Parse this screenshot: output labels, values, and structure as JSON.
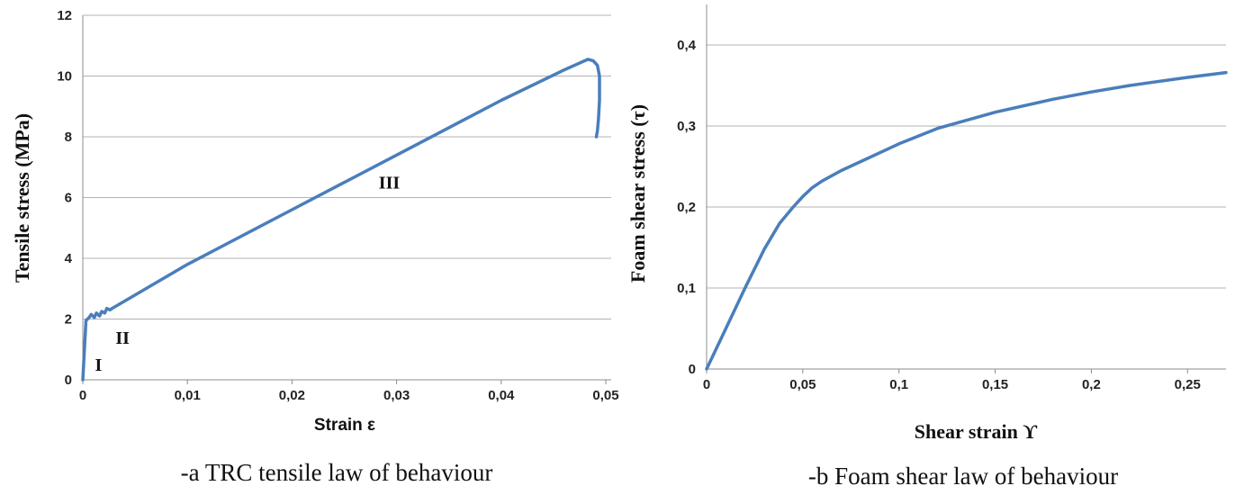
{
  "chart_data": [
    {
      "type": "line",
      "caption": "-a TRC tensile law of behaviour",
      "xlabel": "Strain ε",
      "ylabel": "Tensile stress (MPa)",
      "xlim": [
        0,
        0.05
      ],
      "ylim": [
        0,
        12
      ],
      "x_ticks": [
        0,
        0.01,
        0.02,
        0.03,
        0.04,
        0.05
      ],
      "x_tick_labels": [
        "0",
        "0,01",
        "0,02",
        "0,03",
        "0,04",
        "0,05"
      ],
      "y_ticks": [
        0,
        2,
        4,
        6,
        8,
        10,
        12
      ],
      "y_tick_labels": [
        "0",
        "2",
        "4",
        "6",
        "8",
        "10",
        "12"
      ],
      "grid": "horizontal",
      "annotations": [
        {
          "text": "I",
          "x": 0.0015,
          "y": 0.5
        },
        {
          "text": "II",
          "x": 0.0038,
          "y": 1.4
        },
        {
          "text": "III",
          "x": 0.0293,
          "y": 6.5
        }
      ],
      "series": [
        {
          "color": "#4a7ebb",
          "x": [
            0,
            0.0003,
            0.0006,
            0.0008,
            0.0011,
            0.0013,
            0.0016,
            0.0018,
            0.0021,
            0.0023,
            0.0026,
            0.0028,
            0.01,
            0.02,
            0.03,
            0.04,
            0.046,
            0.0483,
            0.0488,
            0.0492,
            0.0494,
            0.0494,
            0.0493,
            0.0492,
            0.0491
          ],
          "y": [
            0,
            1.95,
            2.05,
            2.15,
            2.05,
            2.2,
            2.1,
            2.25,
            2.2,
            2.35,
            2.3,
            2.35,
            3.8,
            5.6,
            7.4,
            9.2,
            10.2,
            10.55,
            10.5,
            10.35,
            10.0,
            9.2,
            8.6,
            8.2,
            8.0
          ]
        }
      ]
    },
    {
      "type": "line",
      "caption": "-b Foam shear law of behaviour",
      "xlabel": "Shear strain ϒ",
      "ylabel": "Foam shear stress (τ)",
      "xlim": [
        0,
        0.27
      ],
      "ylim": [
        0,
        0.45
      ],
      "x_ticks": [
        0,
        0.05,
        0.1,
        0.15,
        0.2,
        0.25
      ],
      "x_tick_labels": [
        "0",
        "0,05",
        "0,1",
        "0,15",
        "0,2",
        "0,25"
      ],
      "y_ticks": [
        0,
        0.1,
        0.2,
        0.3,
        0.4
      ],
      "y_tick_labels": [
        "0",
        "0,1",
        "0,2",
        "0,3",
        "0,4"
      ],
      "grid": "horizontal",
      "series": [
        {
          "color": "#4a7ebb",
          "x": [
            0,
            0.01,
            0.02,
            0.03,
            0.036,
            0.038,
            0.045,
            0.05,
            0.055,
            0.06,
            0.07,
            0.08,
            0.1,
            0.12,
            0.15,
            0.18,
            0.2,
            0.22,
            0.25,
            0.27
          ],
          "y": [
            0,
            0.05,
            0.1,
            0.148,
            0.172,
            0.18,
            0.2,
            0.213,
            0.224,
            0.232,
            0.245,
            0.256,
            0.278,
            0.297,
            0.317,
            0.333,
            0.342,
            0.35,
            0.36,
            0.366
          ]
        }
      ]
    }
  ]
}
